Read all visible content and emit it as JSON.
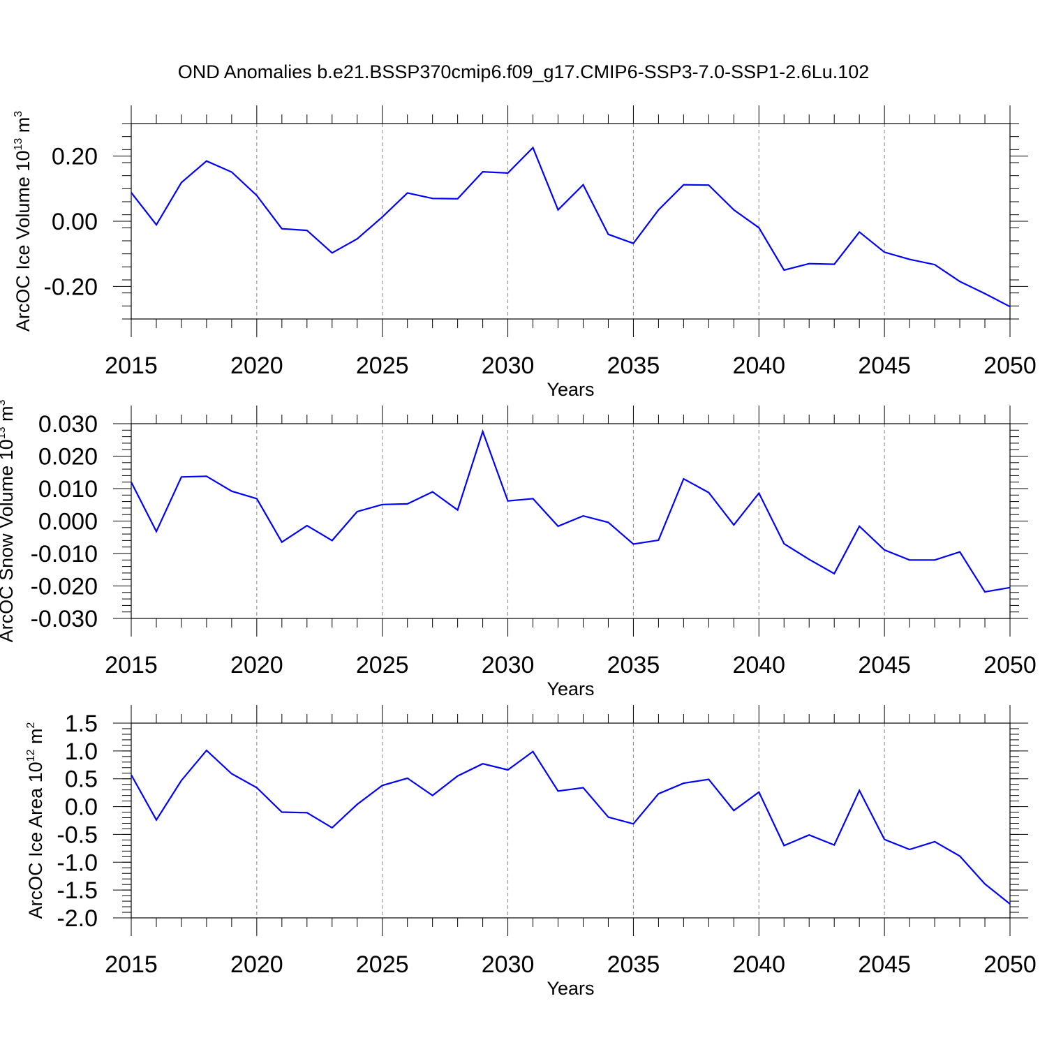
{
  "title": "OND Anomalies b.e21.BSSP370cmip6.f09_g17.CMIP6-SSP3-7.0-SSP1-2.6Lu.102",
  "colors": {
    "series": "#0000ff",
    "axis": "#000000",
    "grid": "#888888"
  },
  "chart_data": [
    {
      "type": "line",
      "name": "ice-volume",
      "ylabel_text": "ArcOC Ice Volume 10",
      "ylabel_exp": "13",
      "ylabel_unit": " m",
      "ylabel_unit_exp": "3",
      "xlabel": "Years",
      "xlim": [
        2015,
        2050
      ],
      "ylim": [
        -0.3,
        0.3
      ],
      "yticks": [
        -0.2,
        0.0,
        0.2
      ],
      "ytick_labels": [
        "-0.20",
        "0.00",
        "0.20"
      ],
      "yminor_step": 0.04,
      "xticks": [
        2015,
        2020,
        2025,
        2030,
        2035,
        2040,
        2045,
        2050
      ],
      "xtick_labels": [
        "2015",
        "2020",
        "2025",
        "2030",
        "2035",
        "2040",
        "2045",
        "2050"
      ],
      "x": [
        2015,
        2016,
        2017,
        2018,
        2019,
        2020,
        2021,
        2022,
        2023,
        2024,
        2025,
        2026,
        2027,
        2028,
        2029,
        2030,
        2031,
        2032,
        2033,
        2034,
        2035,
        2036,
        2037,
        2038,
        2039,
        2040,
        2041,
        2042,
        2043,
        2044,
        2045,
        2046,
        2047,
        2048,
        2049,
        2050
      ],
      "values": [
        0.088,
        -0.011,
        0.119,
        0.185,
        0.151,
        0.079,
        -0.023,
        -0.028,
        -0.097,
        -0.054,
        0.013,
        0.087,
        0.07,
        0.069,
        0.152,
        0.148,
        0.226,
        0.035,
        0.112,
        -0.04,
        -0.068,
        0.035,
        0.112,
        0.111,
        0.035,
        -0.02,
        -0.15,
        -0.13,
        -0.132,
        -0.033,
        -0.095,
        -0.117,
        -0.133,
        -0.185,
        -0.222,
        -0.262
      ]
    },
    {
      "type": "line",
      "name": "snow-volume",
      "ylabel_text": "ArcOC Snow Volume 10",
      "ylabel_exp": "13",
      "ylabel_unit": " m",
      "ylabel_unit_exp": "3",
      "xlabel": "Years",
      "xlim": [
        2015,
        2050
      ],
      "ylim": [
        -0.03,
        0.03
      ],
      "yticks": [
        -0.03,
        -0.02,
        -0.01,
        0.0,
        0.01,
        0.02,
        0.03
      ],
      "ytick_labels": [
        "-0.030",
        "-0.020",
        "-0.010",
        "0.000",
        "0.010",
        "0.020",
        "0.030"
      ],
      "yminor_step": 0.002,
      "xticks": [
        2015,
        2020,
        2025,
        2030,
        2035,
        2040,
        2045,
        2050
      ],
      "xtick_labels": [
        "2015",
        "2020",
        "2025",
        "2030",
        "2035",
        "2040",
        "2045",
        "2050"
      ],
      "x": [
        2015,
        2016,
        2017,
        2018,
        2019,
        2020,
        2021,
        2022,
        2023,
        2024,
        2025,
        2026,
        2027,
        2028,
        2029,
        2030,
        2031,
        2032,
        2033,
        2034,
        2035,
        2036,
        2037,
        2038,
        2039,
        2040,
        2041,
        2042,
        2043,
        2044,
        2045,
        2046,
        2047,
        2048,
        2049,
        2050
      ],
      "values": [
        0.012,
        -0.0032,
        0.0136,
        0.0138,
        0.0092,
        0.0069,
        -0.0065,
        -0.0014,
        -0.006,
        0.0029,
        0.0051,
        0.0053,
        0.009,
        0.0034,
        0.0276,
        0.0062,
        0.0069,
        -0.0016,
        0.0016,
        -0.0004,
        -0.0071,
        -0.0059,
        0.013,
        0.0088,
        -0.0012,
        0.0086,
        -0.007,
        -0.0118,
        -0.0162,
        -0.0016,
        -0.0089,
        -0.012,
        -0.012,
        -0.0095,
        -0.0218,
        -0.0205
      ]
    },
    {
      "type": "line",
      "name": "ice-area",
      "ylabel_text": "ArcOC Ice Area 10",
      "ylabel_exp": "12",
      "ylabel_unit": " m",
      "ylabel_unit_exp": "2",
      "xlabel": "Years",
      "xlim": [
        2015,
        2050
      ],
      "ylim": [
        -2.0,
        1.5
      ],
      "yticks": [
        -2.0,
        -1.5,
        -1.0,
        -0.5,
        0.0,
        0.5,
        1.0,
        1.5
      ],
      "ytick_labels": [
        "-2.0",
        "-1.5",
        "-1.0",
        "-0.5",
        "0.0",
        "0.5",
        "1.0",
        "1.5"
      ],
      "yminor_step": 0.1,
      "xticks": [
        2015,
        2020,
        2025,
        2030,
        2035,
        2040,
        2045,
        2050
      ],
      "xtick_labels": [
        "2015",
        "2020",
        "2025",
        "2030",
        "2035",
        "2040",
        "2045",
        "2050"
      ],
      "x": [
        2015,
        2016,
        2017,
        2018,
        2019,
        2020,
        2021,
        2022,
        2023,
        2024,
        2025,
        2026,
        2027,
        2028,
        2029,
        2030,
        2031,
        2032,
        2033,
        2034,
        2035,
        2036,
        2037,
        2038,
        2039,
        2040,
        2041,
        2042,
        2043,
        2044,
        2045,
        2046,
        2047,
        2048,
        2049,
        2050
      ],
      "values": [
        0.57,
        -0.24,
        0.47,
        1.01,
        0.59,
        0.34,
        -0.1,
        -0.11,
        -0.38,
        0.04,
        0.38,
        0.51,
        0.2,
        0.55,
        0.77,
        0.66,
        0.99,
        0.28,
        0.34,
        -0.19,
        -0.31,
        0.23,
        0.42,
        0.49,
        -0.07,
        0.26,
        -0.7,
        -0.51,
        -0.69,
        0.29,
        -0.59,
        -0.77,
        -0.63,
        -0.89,
        -1.39,
        -1.75
      ]
    }
  ]
}
